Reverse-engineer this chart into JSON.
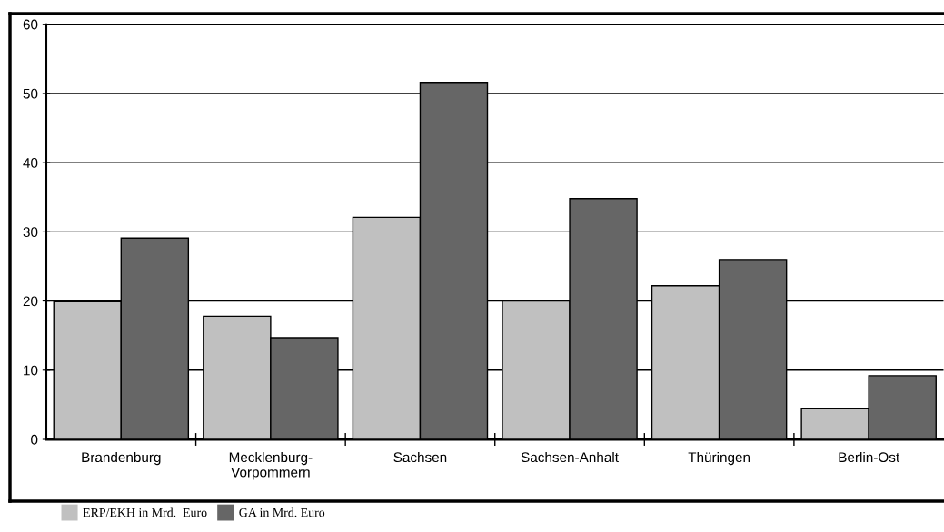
{
  "chart_data": {
    "type": "bar",
    "categories": [
      "Brandenburg",
      "Mecklenburg-\nVorpommern",
      "Sachsen",
      "Sachsen-Anhalt",
      "Thüringen",
      "Berlin-Ost"
    ],
    "series": [
      {
        "name": "ERP/EKH in Mrd.  Euro",
        "color": "#c0c0c0",
        "values": [
          19.9,
          17.8,
          32.1,
          20.0,
          22.2,
          4.5
        ]
      },
      {
        "name": "GA in Mrd. Euro",
        "color": "#666666",
        "values": [
          29.1,
          14.7,
          51.6,
          34.8,
          26.0,
          9.2
        ]
      }
    ],
    "ylim": [
      0,
      60
    ],
    "yticks": [
      0,
      10,
      20,
      30,
      40,
      50,
      60
    ],
    "grid": "y",
    "legend": "bottom"
  }
}
